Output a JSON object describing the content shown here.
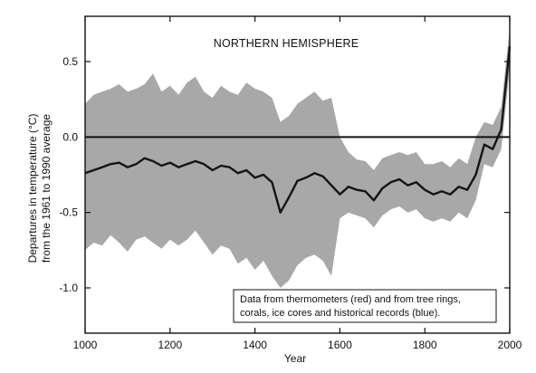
{
  "chart_data": {
    "type": "line",
    "title": "NORTHERN HEMISPHERE",
    "xlabel": "Year",
    "ylabel_lines": [
      "Departures in temperature (°C)",
      "from the 1961 to 1990 average"
    ],
    "xlim": [
      1000,
      2000
    ],
    "ylim": [
      -1.3,
      0.8
    ],
    "x_ticks": [
      1000,
      1200,
      1400,
      1600,
      1800,
      2000
    ],
    "y_ticks": [
      0.5,
      0.0,
      -0.5,
      -1.0
    ],
    "y_tick_labels": [
      "0.5",
      "0.0",
      "-0.5",
      "-1.0"
    ],
    "reference_line": 0.0,
    "annotation_lines": [
      "Data from thermometers (red) and from tree rings,",
      "corals, ice cores and historical records (blue)."
    ],
    "colors": {
      "band": "#a8a8a8",
      "line": "#141414",
      "axis": "#111111"
    },
    "series": [
      {
        "role": "smoothed-reconstruction",
        "x": [
          1000,
          1020,
          1040,
          1060,
          1080,
          1100,
          1120,
          1140,
          1160,
          1180,
          1200,
          1220,
          1240,
          1260,
          1280,
          1300,
          1320,
          1340,
          1360,
          1380,
          1400,
          1420,
          1440,
          1460,
          1480,
          1500,
          1520,
          1540,
          1560,
          1580,
          1600,
          1620,
          1640,
          1660,
          1680,
          1700,
          1720,
          1740,
          1760,
          1780,
          1800,
          1820,
          1840,
          1860,
          1880,
          1900,
          1920,
          1940,
          1960,
          1980,
          2000
        ],
        "values": [
          -0.24,
          -0.22,
          -0.2,
          -0.18,
          -0.17,
          -0.2,
          -0.18,
          -0.14,
          -0.16,
          -0.19,
          -0.17,
          -0.2,
          -0.18,
          -0.16,
          -0.18,
          -0.22,
          -0.19,
          -0.2,
          -0.24,
          -0.22,
          -0.27,
          -0.25,
          -0.3,
          -0.5,
          -0.4,
          -0.29,
          -0.27,
          -0.24,
          -0.26,
          -0.32,
          -0.38,
          -0.33,
          -0.35,
          -0.36,
          -0.42,
          -0.34,
          -0.3,
          -0.28,
          -0.32,
          -0.3,
          -0.35,
          -0.38,
          -0.36,
          -0.38,
          -0.33,
          -0.35,
          -0.25,
          -0.05,
          -0.08,
          0.05,
          0.6
        ]
      },
      {
        "role": "uncertainty-band",
        "x": [
          1000,
          1020,
          1040,
          1060,
          1080,
          1100,
          1120,
          1140,
          1160,
          1180,
          1200,
          1220,
          1240,
          1260,
          1280,
          1300,
          1320,
          1340,
          1360,
          1380,
          1400,
          1420,
          1440,
          1460,
          1480,
          1500,
          1520,
          1540,
          1560,
          1580,
          1600,
          1620,
          1640,
          1660,
          1680,
          1700,
          1720,
          1740,
          1760,
          1780,
          1800,
          1820,
          1840,
          1860,
          1880,
          1900,
          1920,
          1940,
          1960,
          1980,
          2000
        ],
        "upper": [
          0.22,
          0.28,
          0.3,
          0.32,
          0.35,
          0.3,
          0.32,
          0.35,
          0.42,
          0.3,
          0.34,
          0.28,
          0.36,
          0.4,
          0.3,
          0.26,
          0.34,
          0.3,
          0.28,
          0.36,
          0.32,
          0.3,
          0.26,
          0.1,
          0.14,
          0.22,
          0.26,
          0.3,
          0.24,
          0.26,
          0.0,
          -0.1,
          -0.15,
          -0.16,
          -0.22,
          -0.14,
          -0.12,
          -0.1,
          -0.12,
          -0.1,
          -0.18,
          -0.18,
          -0.16,
          -0.2,
          -0.14,
          -0.18,
          0.0,
          0.1,
          0.08,
          0.2,
          0.72
        ],
        "lower": [
          -0.75,
          -0.7,
          -0.72,
          -0.65,
          -0.7,
          -0.76,
          -0.68,
          -0.66,
          -0.7,
          -0.74,
          -0.68,
          -0.72,
          -0.68,
          -0.62,
          -0.7,
          -0.78,
          -0.72,
          -0.74,
          -0.84,
          -0.8,
          -0.88,
          -0.82,
          -0.92,
          -1.0,
          -0.95,
          -0.85,
          -0.8,
          -0.78,
          -0.82,
          -0.92,
          -0.54,
          -0.5,
          -0.52,
          -0.54,
          -0.6,
          -0.52,
          -0.48,
          -0.46,
          -0.5,
          -0.48,
          -0.54,
          -0.56,
          -0.54,
          -0.56,
          -0.5,
          -0.54,
          -0.42,
          -0.18,
          -0.2,
          -0.08,
          0.45
        ]
      }
    ]
  }
}
